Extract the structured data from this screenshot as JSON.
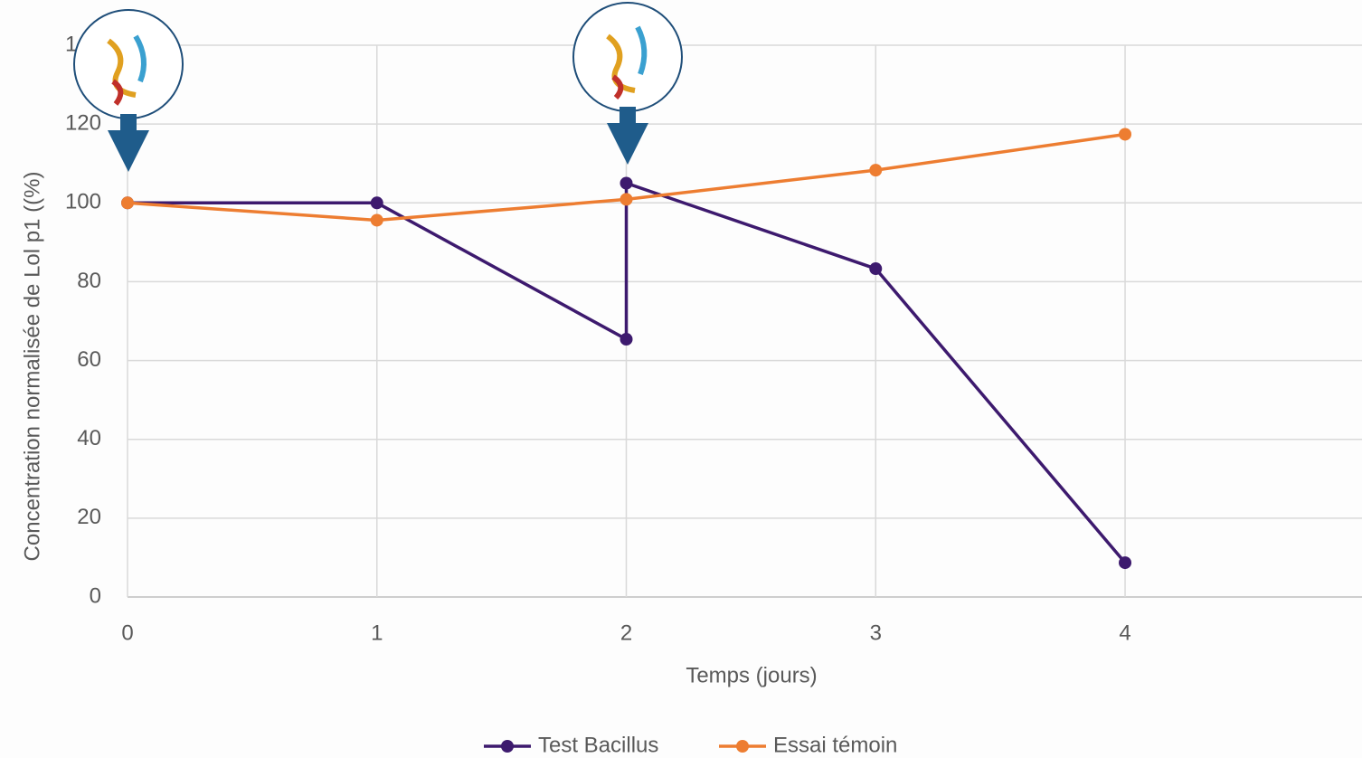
{
  "chart_data": {
    "type": "line",
    "x_label": "Temps (jours)",
    "y_label": "Concentration normalisée de Lol p1 ((%)",
    "series": [
      {
        "name": "Test Bacillus",
        "color": "#3d1a6e",
        "x": [
          0,
          1,
          2,
          2,
          3,
          4
        ],
        "values": [
          100,
          100,
          65.4,
          105,
          83.3,
          8.7
        ]
      },
      {
        "name": "Essai témoin",
        "color": "#ed7d31",
        "x": [
          0,
          1,
          2,
          3,
          4
        ],
        "values": [
          100,
          95.6,
          100.9,
          108.3,
          117.4
        ]
      }
    ],
    "xlim": [
      0,
      4.95
    ],
    "xticks": [
      0,
      1,
      2,
      3,
      4
    ],
    "ylim": [
      0,
      140
    ],
    "yticks": [
      0,
      20,
      40,
      60,
      80,
      100,
      120,
      140
    ],
    "grid": true,
    "legend": "bottom"
  }
}
